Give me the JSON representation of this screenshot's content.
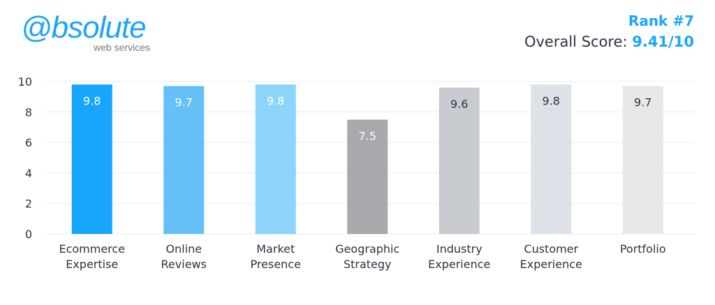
{
  "logo": {
    "main": "@bsolute",
    "sub": "web services"
  },
  "header": {
    "rank": "Rank #7",
    "score_label": "Overall Score:",
    "score_value": "9.41/10"
  },
  "chart_data": {
    "type": "bar",
    "categories": [
      [
        "Ecommerce",
        "Expertise"
      ],
      [
        "Online",
        "Reviews"
      ],
      [
        "Market",
        "Presence"
      ],
      [
        "Geographic",
        "Strategy"
      ],
      [
        "Industry",
        "Experience"
      ],
      [
        "Customer",
        "Experience"
      ],
      [
        "Portfolio"
      ]
    ],
    "values": [
      9.8,
      9.7,
      9.8,
      7.5,
      9.6,
      9.8,
      9.7
    ],
    "colors": [
      "#17a6fb",
      "#64c0f7",
      "#8dd4fb",
      "#a7a9ac",
      "#c8cbcf",
      "#dde1e8",
      "#e8e8e8"
    ],
    "label_colors": [
      "#ffffff",
      "#ffffff",
      "#ffffff",
      "#ffffff",
      "#2d3340",
      "#2d3340",
      "#2d3340"
    ],
    "yticks": [
      0,
      2,
      4,
      6,
      8,
      10
    ],
    "ylim": [
      0,
      10
    ],
    "grid": true,
    "title": "",
    "xlabel": "",
    "ylabel": ""
  }
}
